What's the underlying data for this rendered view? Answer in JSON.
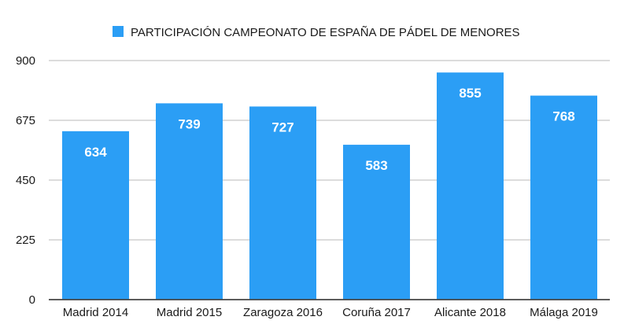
{
  "chart_data": {
    "type": "bar",
    "title": "",
    "xlabel": "",
    "ylabel": "",
    "ylim": [
      0,
      900
    ],
    "yticks": [
      0,
      225,
      450,
      675,
      900
    ],
    "grid": true,
    "legend_position": "top-center",
    "categories": [
      "Madrid 2014",
      "Madrid 2015",
      "Zaragoza 2016",
      "Coruña 2017",
      "Alicante 2018",
      "Málaga 2019"
    ],
    "series": [
      {
        "name": "PARTICIPACIÓN  CAMPEONATO DE ESPAÑA DE PÁDEL DE MENORES",
        "values": [
          634,
          739,
          727,
          583,
          855,
          768
        ],
        "color": "#2b9ef5"
      }
    ],
    "data_labels": [
      "634",
      "739",
      "727",
      "583",
      "855",
      "768"
    ],
    "colors": {
      "bar": "#2b9ef5",
      "grid": "#c8c8c8",
      "axis": "#444444"
    }
  }
}
